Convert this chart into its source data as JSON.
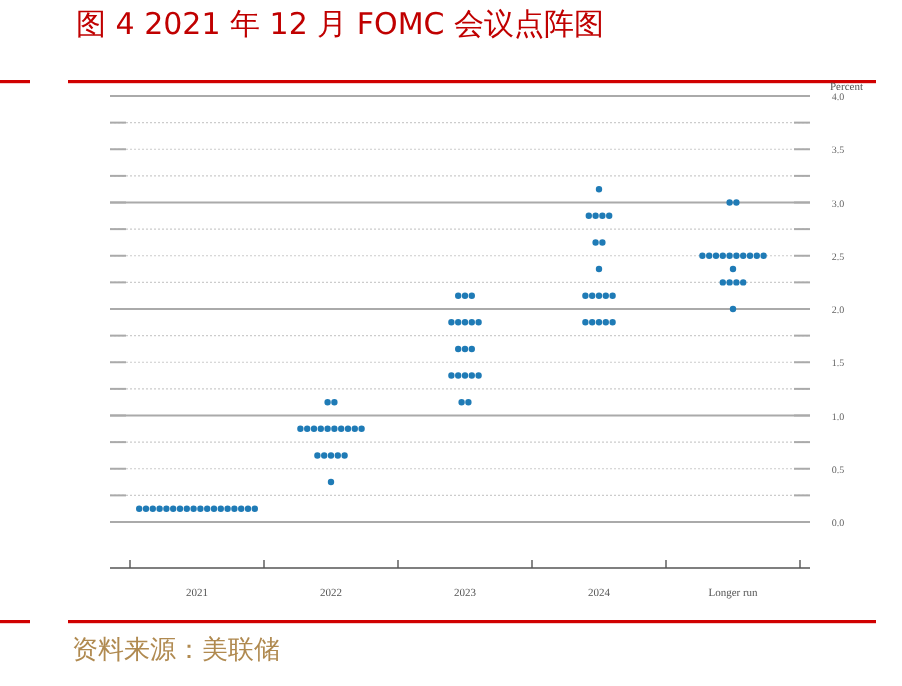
{
  "chart_data": {
    "type": "scatter",
    "title": "图 4 2021 年 12 月 FOMC 会议点阵图",
    "ylabel": "Percent",
    "annotations": [
      "资料来源：美联储"
    ],
    "categories": [
      "2021",
      "2022",
      "2023",
      "2024",
      "Longer run"
    ],
    "ylim": [
      0,
      4
    ],
    "yticks": [
      {
        "value": 0,
        "label": "0.0"
      },
      {
        "value": 0.25,
        "label": null
      },
      {
        "value": 0.5,
        "label": "0.5"
      },
      {
        "value": 0.75,
        "label": null
      },
      {
        "value": 1,
        "label": "1.0"
      },
      {
        "value": 1.25,
        "label": null
      },
      {
        "value": 1.5,
        "label": "1.5"
      },
      {
        "value": 1.75,
        "label": null
      },
      {
        "value": 2,
        "label": "2.0"
      },
      {
        "value": 2.25,
        "label": null
      },
      {
        "value": 2.5,
        "label": "2.5"
      },
      {
        "value": 2.75,
        "label": null
      },
      {
        "value": 3,
        "label": "3.0"
      },
      {
        "value": 3.25,
        "label": null
      },
      {
        "value": 3.5,
        "label": "3.5"
      },
      {
        "value": 3.75,
        "label": null
      },
      {
        "value": 4,
        "label": "4.0"
      }
    ],
    "grid": "y",
    "marker": "circle",
    "series": [
      {
        "color": "#1f7bb6",
        "values": [
          0.125,
          0.375,
          1.125,
          1.875,
          2.0
        ]
      },
      {
        "color": "#1f7bb6",
        "values": [
          0.125,
          0.625,
          1.125,
          1.875,
          2.25
        ]
      },
      {
        "color": "#1f7bb6",
        "values": [
          0.125,
          0.625,
          1.375,
          1.875,
          2.25
        ]
      },
      {
        "color": "#1f7bb6",
        "values": [
          0.125,
          0.625,
          1.375,
          1.875,
          2.25
        ]
      },
      {
        "color": "#1f7bb6",
        "values": [
          0.125,
          0.625,
          1.375,
          1.875,
          2.25
        ]
      },
      {
        "color": "#1f7bb6",
        "values": [
          0.125,
          0.625,
          1.375,
          2.125,
          2.375
        ]
      },
      {
        "color": "#1f7bb6",
        "values": [
          0.125,
          0.875,
          1.375,
          2.125,
          2.5
        ]
      },
      {
        "color": "#1f7bb6",
        "values": [
          0.125,
          0.875,
          1.625,
          2.125,
          2.5
        ]
      },
      {
        "color": "#1f7bb6",
        "values": [
          0.125,
          0.875,
          1.625,
          2.125,
          2.5
        ]
      },
      {
        "color": "#1f7bb6",
        "values": [
          0.125,
          0.875,
          1.625,
          2.125,
          2.5
        ]
      },
      {
        "color": "#1f7bb6",
        "values": [
          0.125,
          0.875,
          1.875,
          2.375,
          2.5
        ]
      },
      {
        "color": "#1f7bb6",
        "values": [
          0.125,
          0.875,
          1.875,
          2.625,
          2.5
        ]
      },
      {
        "color": "#1f7bb6",
        "values": [
          0.125,
          0.875,
          1.875,
          2.625,
          2.5
        ]
      },
      {
        "color": "#1f7bb6",
        "values": [
          0.125,
          0.875,
          1.875,
          2.875,
          2.5
        ]
      },
      {
        "color": "#1f7bb6",
        "values": [
          0.125,
          0.875,
          1.875,
          2.875,
          2.5
        ]
      },
      {
        "color": "#1f7bb6",
        "values": [
          0.125,
          0.875,
          2.125,
          2.875,
          2.5
        ]
      },
      {
        "color": "#1f7bb6",
        "values": [
          0.125,
          1.125,
          2.125,
          2.875,
          3.0
        ]
      },
      {
        "color": "#1f7bb6",
        "values": [
          0.125,
          1.125,
          2.125,
          3.125,
          3.0
        ]
      }
    ]
  }
}
